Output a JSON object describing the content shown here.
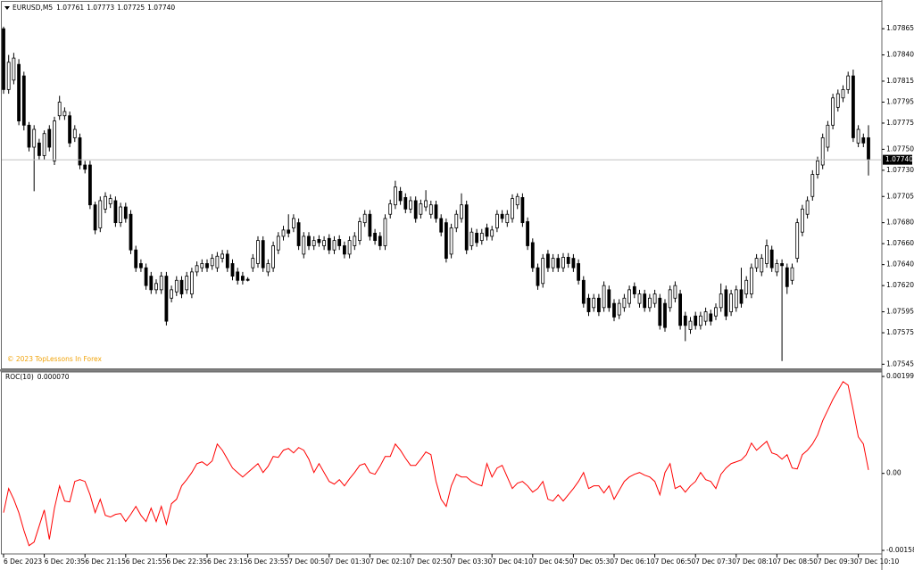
{
  "chart_data": [
    {
      "type": "candlestick",
      "title": "EURUSD,M5",
      "last_bar_labels": {
        "open": "1.07761",
        "high": "1.07773",
        "low": "1.07725",
        "close": "1.07740"
      },
      "watermark": "© 2023 TopLessons In Forex",
      "bull_color": "#ffffff",
      "bear_color": "#000000",
      "current_price_line": true,
      "categories": [
        "6 Dec 2023",
        null,
        null,
        null,
        null,
        null,
        null,
        null,
        "6 Dec 20:35",
        null,
        null,
        null,
        null,
        null,
        null,
        null,
        "6 Dec 21:15",
        null,
        null,
        null,
        null,
        null,
        null,
        null,
        "6 Dec 21:55",
        null,
        null,
        null,
        null,
        null,
        null,
        null,
        "6 Dec 22:35",
        null,
        null,
        null,
        null,
        null,
        null,
        null,
        "6 Dec 23:15",
        null,
        null,
        null,
        null,
        null,
        null,
        null,
        "6 Dec 23:55",
        null,
        null,
        null,
        null,
        null,
        null,
        null,
        "7 Dec 00:50",
        null,
        null,
        null,
        null,
        null,
        null,
        null,
        "7 Dec 01:30",
        null,
        null,
        null,
        null,
        null,
        null,
        null,
        "7 Dec 02:10",
        null,
        null,
        null,
        null,
        null,
        null,
        null,
        "7 Dec 02:50",
        null,
        null,
        null,
        null,
        null,
        null,
        null,
        "7 Dec 03:30",
        null,
        null,
        null,
        null,
        null,
        null,
        null,
        "7 Dec 04:10",
        null,
        null,
        null,
        null,
        null,
        null,
        null,
        "7 Dec 04:50",
        null,
        null,
        null,
        null,
        null,
        null,
        null,
        "7 Dec 05:30",
        null,
        null,
        null,
        null,
        null,
        null,
        null,
        "7 Dec 06:10",
        null,
        null,
        null,
        null,
        null,
        null,
        null,
        "7 Dec 06:50",
        null,
        null,
        null,
        null,
        null,
        null,
        null,
        "7 Dec 07:30",
        null,
        null,
        null,
        null,
        null,
        null,
        null,
        "7 Dec 08:10",
        null,
        null,
        null,
        null,
        null,
        null,
        null,
        "7 Dec 08:50",
        null,
        null,
        null,
        null,
        null,
        null,
        null,
        "7 Dec 09:30",
        null,
        null,
        null,
        null,
        null,
        null,
        null,
        "7 Dec 10:10",
        null,
        null
      ],
      "open": [
        1.07865,
        1.07807,
        1.07816,
        1.07831,
        1.0782,
        1.07773,
        1.07752,
        1.07756,
        1.07744,
        1.07769,
        1.07739,
        1.07782,
        1.07782,
        1.07782,
        1.07761,
        1.07761,
        1.07735,
        1.07735,
        1.07697,
        1.07675,
        1.07693,
        1.07698,
        1.07701,
        1.0768,
        1.07695,
        1.07688,
        1.07654,
        1.07641,
        1.07637,
        1.07629,
        1.07616,
        1.07616,
        1.07629,
        1.07608,
        1.07614,
        1.07625,
        1.07616,
        1.07612,
        1.07633,
        1.07637,
        1.07641,
        1.07639,
        1.07637,
        1.07646,
        1.0765,
        1.07641,
        1.07633,
        1.07629,
        1.07626,
        1.07637,
        1.07641,
        1.07663,
        1.07633,
        1.07637,
        1.07654,
        1.07667,
        1.07673,
        1.07675,
        1.0768,
        1.0765,
        1.07667,
        1.07658,
        1.07664,
        1.07658,
        1.07665,
        1.07654,
        1.07664,
        1.07658,
        1.0765,
        1.07658,
        1.07663,
        1.0768,
        1.07688,
        1.0767,
        1.07667,
        1.07658,
        1.07688,
        1.07697,
        1.0771,
        1.07704,
        1.07693,
        1.07701,
        1.07688,
        1.07695,
        1.07688,
        1.07697,
        1.07684,
        1.0768,
        1.0765,
        1.07675,
        1.07684,
        1.07697,
        1.07658,
        1.0767,
        1.07663,
        1.07675,
        1.07667,
        1.07675,
        1.07688,
        1.0768,
        1.07684,
        1.07697,
        1.07704,
        1.07681,
        1.07661,
        1.07637,
        1.07622,
        1.0765,
        1.07637,
        1.07646,
        1.07637,
        1.07647,
        1.07646,
        1.07641,
        1.07625,
        1.07608,
        1.07599,
        1.07608,
        1.07599,
        1.07616,
        1.07603,
        1.07592,
        1.07599,
        1.07603,
        1.07619,
        1.07603,
        1.07612,
        1.07599,
        1.07603,
        1.07608,
        1.07603,
        1.07599,
        1.07608,
        1.07612,
        1.07591,
        1.07578,
        1.07591,
        1.07582,
        1.07586,
        1.07593,
        1.07591,
        1.07599,
        1.07616,
        1.07595,
        1.07599,
        1.07616,
        1.07612,
        1.07612,
        1.07637,
        1.07633,
        1.07641,
        1.07654,
        1.07633,
        1.07641,
        1.07637,
        1.07625,
        1.07646,
        1.07671,
        1.07688,
        1.07705,
        1.07726,
        1.07735,
        1.07752,
        1.07773,
        1.0779,
        1.07799,
        1.07807,
        1.0782,
        1.07756,
        1.07761,
        1.07761
      ],
      "high": [
        1.07867,
        1.0784,
        1.07842,
        1.07836,
        1.07824,
        1.07776,
        1.07773,
        1.0776,
        1.07768,
        1.07773,
        1.07781,
        1.07801,
        1.0779,
        1.07786,
        1.07773,
        1.07765,
        1.07739,
        1.07739,
        1.077,
        1.07705,
        1.07709,
        1.07707,
        1.07705,
        1.07699,
        1.07699,
        1.07692,
        1.07658,
        1.07645,
        1.07641,
        1.07633,
        1.07626,
        1.07633,
        1.07633,
        1.0762,
        1.07629,
        1.07629,
        1.07633,
        1.07637,
        1.07643,
        1.07645,
        1.07645,
        1.0765,
        1.07652,
        1.07654,
        1.07654,
        1.07645,
        1.07637,
        1.07633,
        1.07628,
        1.0765,
        1.07667,
        1.07667,
        1.07645,
        1.07662,
        1.07671,
        1.07677,
        1.07688,
        1.07688,
        1.07684,
        1.07671,
        1.07671,
        1.07667,
        1.07668,
        1.07667,
        1.07669,
        1.07667,
        1.07668,
        1.07662,
        1.07667,
        1.07671,
        1.07685,
        1.07692,
        1.07692,
        1.07674,
        1.07671,
        1.07688,
        1.07702,
        1.0772,
        1.07714,
        1.07708,
        1.07705,
        1.07705,
        1.07702,
        1.07711,
        1.07701,
        1.07701,
        1.07688,
        1.07684,
        1.07679,
        1.07692,
        1.07708,
        1.07701,
        1.07675,
        1.07674,
        1.07674,
        1.07679,
        1.07677,
        1.07692,
        1.07692,
        1.07692,
        1.07707,
        1.07708,
        1.07708,
        1.07685,
        1.07665,
        1.07641,
        1.0765,
        1.07654,
        1.0765,
        1.0765,
        1.07651,
        1.07651,
        1.0765,
        1.07645,
        1.07629,
        1.07612,
        1.07612,
        1.07612,
        1.07624,
        1.0762,
        1.07607,
        1.07607,
        1.07612,
        1.0762,
        1.07623,
        1.07616,
        1.07616,
        1.07612,
        1.07616,
        1.07612,
        1.07607,
        1.0762,
        1.07624,
        1.07616,
        1.07595,
        1.0759,
        1.07595,
        1.07595,
        1.07599,
        1.07597,
        1.07603,
        1.07622,
        1.0762,
        1.07616,
        1.0762,
        1.07637,
        1.07629,
        1.07641,
        1.0765,
        1.0765,
        1.07664,
        1.07658,
        1.07645,
        1.07645,
        1.07641,
        1.07641,
        1.07684,
        1.07697,
        1.07705,
        1.0773,
        1.07743,
        1.07765,
        1.07777,
        1.07803,
        1.07807,
        1.07811,
        1.07824,
        1.07826,
        1.07773,
        1.07765,
        1.07773
      ],
      "low": [
        1.07803,
        1.07803,
        1.07812,
        1.07773,
        1.07768,
        1.07748,
        1.0771,
        1.0774,
        1.0774,
        1.07748,
        1.07735,
        1.07778,
        1.07778,
        1.07752,
        1.07757,
        1.07731,
        1.07727,
        1.07693,
        1.07669,
        1.07671,
        1.07689,
        1.07694,
        1.07676,
        1.07676,
        1.0768,
        1.0765,
        1.07633,
        1.07633,
        1.07616,
        1.07612,
        1.07612,
        1.07612,
        1.07582,
        1.07604,
        1.0761,
        1.07608,
        1.07612,
        1.07608,
        1.07629,
        1.07633,
        1.07633,
        1.07635,
        1.07633,
        1.07642,
        1.07633,
        1.07625,
        1.07621,
        1.07621,
        1.07624,
        1.07633,
        1.07637,
        1.07633,
        1.07629,
        1.07633,
        1.0765,
        1.07663,
        1.07666,
        1.07671,
        1.07654,
        1.07646,
        1.07654,
        1.07654,
        1.07657,
        1.07654,
        1.0765,
        1.0765,
        1.07654,
        1.07646,
        1.07646,
        1.07654,
        1.07659,
        1.07676,
        1.07663,
        1.07659,
        1.07654,
        1.07654,
        1.07684,
        1.07693,
        1.07697,
        1.07689,
        1.07689,
        1.0768,
        1.07684,
        1.07691,
        1.07684,
        1.0768,
        1.07667,
        1.07642,
        1.07646,
        1.07671,
        1.0768,
        1.0765,
        1.07654,
        1.07657,
        1.07659,
        1.07663,
        1.07663,
        1.07671,
        1.0768,
        1.07676,
        1.0768,
        1.07693,
        1.07676,
        1.07654,
        1.07633,
        1.07616,
        1.07618,
        1.07633,
        1.07633,
        1.07633,
        1.07633,
        1.07637,
        1.07633,
        1.07621,
        1.07599,
        1.07591,
        1.07595,
        1.07591,
        1.07595,
        1.07595,
        1.07586,
        1.07588,
        1.07595,
        1.07599,
        1.07608,
        1.07599,
        1.07595,
        1.07595,
        1.07599,
        1.07578,
        1.07576,
        1.07595,
        1.07604,
        1.07578,
        1.07567,
        1.07574,
        1.07578,
        1.07578,
        1.07582,
        1.07582,
        1.07587,
        1.07595,
        1.07587,
        1.07591,
        1.07595,
        1.07599,
        1.07608,
        1.07608,
        1.07633,
        1.07629,
        1.07637,
        1.07633,
        1.07629,
        1.07548,
        1.07612,
        1.07621,
        1.07642,
        1.07667,
        1.07684,
        1.07701,
        1.07722,
        1.07731,
        1.07748,
        1.07769,
        1.07786,
        1.07795,
        1.07803,
        1.07757,
        1.07752,
        1.07752,
        1.07725
      ],
      "close": [
        1.07807,
        1.07833,
        1.07837,
        1.07777,
        1.07773,
        1.07752,
        1.07769,
        1.07744,
        1.07765,
        1.07752,
        1.07777,
        1.07795,
        1.07786,
        1.07756,
        1.07769,
        1.07735,
        1.07731,
        1.07697,
        1.07673,
        1.07701,
        1.07705,
        1.07703,
        1.0768,
        1.07695,
        1.07684,
        1.07654,
        1.07637,
        1.07637,
        1.0762,
        1.07616,
        1.07622,
        1.07629,
        1.07586,
        1.07616,
        1.07625,
        1.07612,
        1.07629,
        1.07633,
        1.07639,
        1.07641,
        1.07637,
        1.07646,
        1.07648,
        1.0765,
        1.07637,
        1.07629,
        1.07625,
        1.07625,
        1.07625,
        1.07646,
        1.07663,
        1.07637,
        1.07641,
        1.07658,
        1.07667,
        1.07673,
        1.0767,
        1.07684,
        1.07658,
        1.07667,
        1.07658,
        1.07663,
        1.07661,
        1.07663,
        1.07654,
        1.07663,
        1.07658,
        1.0765,
        1.07663,
        1.07667,
        1.07681,
        1.07688,
        1.07667,
        1.07663,
        1.07658,
        1.07684,
        1.07698,
        1.07714,
        1.07701,
        1.07693,
        1.07701,
        1.07684,
        1.07698,
        1.07701,
        1.07697,
        1.07684,
        1.07671,
        1.07646,
        1.07675,
        1.07688,
        1.07697,
        1.07654,
        1.07671,
        1.07661,
        1.0767,
        1.07667,
        1.07673,
        1.07688,
        1.07684,
        1.07688,
        1.07703,
        1.07705,
        1.0768,
        1.07658,
        1.07637,
        1.0762,
        1.07646,
        1.07637,
        1.07646,
        1.07637,
        1.07647,
        1.07641,
        1.07637,
        1.07625,
        1.07603,
        1.07595,
        1.07608,
        1.07595,
        1.0762,
        1.07599,
        1.0759,
        1.07603,
        1.07608,
        1.07616,
        1.07612,
        1.07612,
        1.07599,
        1.07608,
        1.07612,
        1.07582,
        1.0758,
        1.07616,
        1.0762,
        1.07582,
        1.07582,
        1.07586,
        1.07582,
        1.07591,
        1.07595,
        1.07586,
        1.07599,
        1.07612,
        1.07591,
        1.07612,
        1.07616,
        1.07603,
        1.07625,
        1.07637,
        1.07646,
        1.07646,
        1.07658,
        1.07637,
        1.07641,
        1.07639,
        1.07619,
        1.07637,
        1.0768,
        1.07693,
        1.07701,
        1.07726,
        1.07739,
        1.07761,
        1.07773,
        1.07799,
        1.07803,
        1.07807,
        1.0782,
        1.07761,
        1.07769,
        1.07756,
        1.0774
      ],
      "ylim": [
        1.07541,
        1.07889
      ],
      "yticks": [
        1.07865,
        {
          "value": 1.0784,
          "label": "1.07840"
        },
        1.07815,
        1.07795,
        1.07775,
        {
          "value": 1.0775,
          "label": "1.07750"
        },
        {
          "value": 1.0773,
          "label": "1.07730"
        },
        1.07705,
        {
          "value": 1.0768,
          "label": "1.07680"
        },
        {
          "value": 1.0766,
          "label": "1.07660"
        },
        {
          "value": 1.0764,
          "label": "1.07640"
        },
        {
          "value": 1.0762,
          "label": "1.07620"
        },
        1.07595,
        1.07575,
        1.07545
      ]
    },
    {
      "type": "line",
      "title": "ROC(10)",
      "indicator_value": "0.000070",
      "color": "#ff0000",
      "values": [
        -0.000806,
        -0.000311,
        -0.000531,
        -0.000806,
        -0.001172,
        -0.001484,
        -0.00141,
        -0.001081,
        -0.000751,
        -0.001355,
        -0.000714,
        -0.000256,
        -0.000568,
        -0.000586,
        -0.000165,
        -0.000128,
        -0.000165,
        -0.00044,
        -0.000806,
        -0.000531,
        -0.000861,
        -0.000897,
        -0.000842,
        -0.000824,
        -0.000989,
        -0.000842,
        -0.000678,
        -0.000861,
        -0.000989,
        -0.000714,
        -0.000989,
        -0.000678,
        -0.001044,
        -0.000623,
        -0.000531,
        -0.000256,
        -0.000128,
        1.8e-05,
        0.000201,
        0.000238,
        0.000165,
        0.000256,
        0.000604,
        0.000476,
        0.000293,
        0.00011,
        1.8e-05,
        -7.3e-05,
        1.8e-05,
        0.00011,
        0.000201,
        1.8e-05,
        0.000147,
        0.000348,
        0.00033,
        0.000476,
        0.000513,
        0.000421,
        0.000531,
        0.000476,
        0.000293,
        1.8e-05,
        0.000201,
        1.8e-05,
        -0.000165,
        -0.00022,
        -0.000128,
        -0.000256,
        -0.00011,
        1.8e-05,
        0.000165,
        0.000201,
        1.8e-05,
        -1.8e-05,
        0.000147,
        0.000348,
        0.000348,
        0.000604,
        0.000476,
        0.000311,
        0.000165,
        0.000165,
        0.000293,
        0.00044,
        0.000385,
        -0.000165,
        -0.000531,
        -0.000678,
        -0.000256,
        -1.8e-05,
        -7.3e-05,
        -7.3e-05,
        -0.000165,
        -0.00022,
        -0.000256,
        0.000201,
        -7.3e-05,
        0.00011,
        0.000165,
        -7.3e-05,
        -0.000311,
        -0.000201,
        -0.000165,
        -0.000256,
        -0.000385,
        -0.000311,
        -0.000165,
        -0.000531,
        -0.000568,
        -0.00044,
        -0.000568,
        -0.00044,
        -0.000311,
        -0.000165,
        1.8e-05,
        -0.000311,
        -0.000256,
        -0.000256,
        -0.000403,
        -0.000256,
        -0.000531,
        -0.000348,
        -0.000165,
        -7.3e-05,
        -1.8e-05,
        1.8e-05,
        -3.7e-05,
        -7.3e-05,
        -0.000165,
        -0.00044,
        1.8e-05,
        0.000201,
        -0.000311,
        -0.000256,
        -0.000385,
        -0.000256,
        -0.000165,
        1.8e-05,
        -0.000128,
        -0.000165,
        -0.000311,
        -1.8e-05,
        0.00011,
        0.000201,
        0.000238,
        0.000275,
        0.000385,
        0.000623,
        0.000476,
        0.000568,
        0.000659,
        0.000421,
        0.000385,
        0.000293,
        0.000385,
        0.00011,
        9.2e-05,
        0.000385,
        0.000476,
        0.000604,
        0.000788,
        0.001081,
        0.0013,
        0.00152,
        0.001703,
        0.001886,
        0.001813,
        0.0013,
        0.000751,
        0.000604,
        7e-05
      ],
      "ylim": [
        -0.001655,
        0.002084
      ],
      "yticks": [
        0.001992,
        {
          "value": 0,
          "label": "0.00"
        },
        -0.001582
      ]
    }
  ]
}
